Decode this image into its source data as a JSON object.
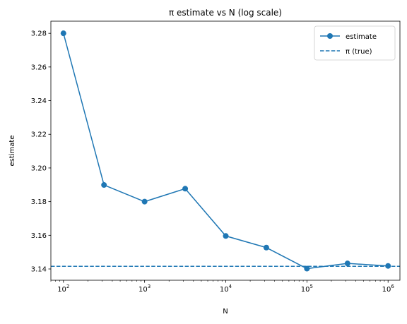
{
  "chart_data": {
    "type": "line",
    "title": "π estimate vs N (log scale)",
    "xlabel": "N",
    "ylabel": "estimate",
    "x_scale": "log",
    "xlim": [
      70,
      1400000
    ],
    "ylim": [
      3.1333,
      3.2872
    ],
    "x_ticks": [
      {
        "value": 100,
        "base": "10",
        "exp": "2"
      },
      {
        "value": 1000,
        "base": "10",
        "exp": "3"
      },
      {
        "value": 10000,
        "base": "10",
        "exp": "4"
      },
      {
        "value": 100000,
        "base": "10",
        "exp": "5"
      },
      {
        "value": 1000000,
        "base": "10",
        "exp": "6"
      }
    ],
    "y_ticks": [
      3.14,
      3.16,
      3.18,
      3.2,
      3.22,
      3.24,
      3.26,
      3.28
    ],
    "y_tick_labels": [
      "3.14",
      "3.16",
      "3.18",
      "3.20",
      "3.22",
      "3.24",
      "3.26",
      "3.28"
    ],
    "grid": false,
    "legend_position": "top-right",
    "series": [
      {
        "name": "estimate",
        "style": "solid-line-with-circle-markers",
        "color": "#1f77b4",
        "x": [
          100,
          316,
          1000,
          3162,
          10000,
          31623,
          100000,
          316228,
          1000000
        ],
        "y": [
          3.28,
          3.1899,
          3.18,
          3.1877,
          3.1596,
          3.1527,
          3.1402,
          3.1433,
          3.1418
        ]
      },
      {
        "name": "π (true)",
        "style": "dashed-horizontal-line",
        "color": "#1f77b4",
        "y": 3.14159
      }
    ]
  }
}
